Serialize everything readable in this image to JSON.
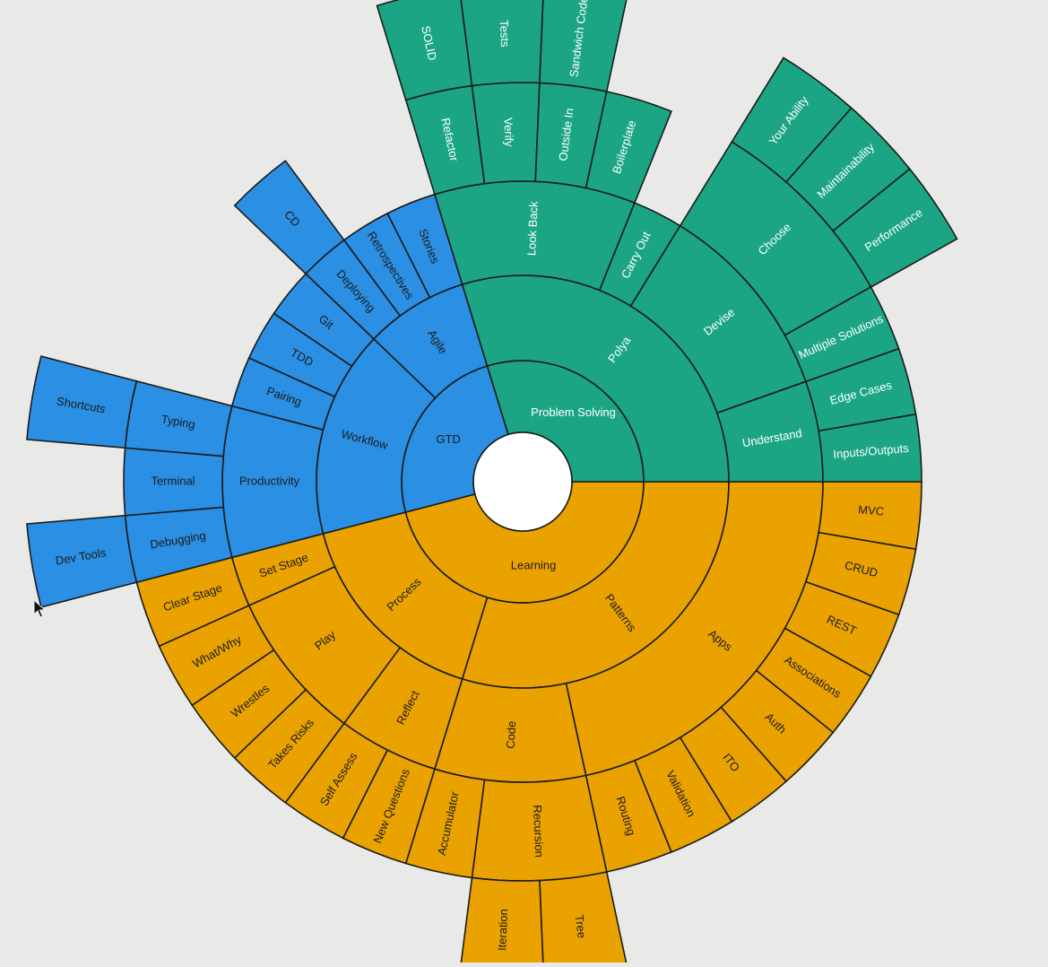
{
  "colors": {
    "Learning": "#e9a200",
    "Problem Solving": "#1ba584",
    "GTD": "#2b8fe3",
    "stroke": "#1a1a1a",
    "text_dark": "#1c1c1c",
    "text_light": "#ffffff",
    "center": "#ffffff",
    "background": "#e9e9e7"
  },
  "chart_data": {
    "type": "sunburst",
    "center": "",
    "nodes": [
      {
        "name": "Learning",
        "children": [
          {
            "name": "Patterns",
            "children": [
              {
                "name": "Apps",
                "children": [
                  {
                    "name": "MVC"
                  },
                  {
                    "name": "CRUD"
                  },
                  {
                    "name": "REST"
                  },
                  {
                    "name": "Associations"
                  },
                  {
                    "name": "Auth"
                  },
                  {
                    "name": "ITO"
                  },
                  {
                    "name": "Validation"
                  },
                  {
                    "name": "Routing"
                  }
                ]
              },
              {
                "name": "Code",
                "children": [
                  {
                    "name": "Recursion",
                    "children": [
                      {
                        "name": "Tree"
                      },
                      {
                        "name": "Iteration"
                      }
                    ]
                  },
                  {
                    "name": "Accumulator"
                  }
                ]
              }
            ]
          },
          {
            "name": "Process",
            "children": [
              {
                "name": "Reflect",
                "children": [
                  {
                    "name": "New Questions"
                  },
                  {
                    "name": "Self Assess"
                  }
                ]
              },
              {
                "name": "Play",
                "children": [
                  {
                    "name": "Takes Risks"
                  },
                  {
                    "name": "Wrestles"
                  },
                  {
                    "name": "What/Why"
                  }
                ]
              },
              {
                "name": "Set Stage",
                "children": [
                  {
                    "name": "Clear Stage"
                  }
                ]
              }
            ]
          }
        ]
      },
      {
        "name": "GTD",
        "children": [
          {
            "name": "Workflow",
            "children": [
              {
                "name": "Productivity",
                "children": [
                  {
                    "name": "Debugging",
                    "children": [
                      {
                        "name": "Dev Tools"
                      }
                    ]
                  },
                  {
                    "name": "Terminal"
                  },
                  {
                    "name": "Typing",
                    "children": [
                      {
                        "name": "Shortcuts"
                      }
                    ]
                  }
                ]
              },
              {
                "name": "Pairing"
              },
              {
                "name": "TDD"
              },
              {
                "name": "Git"
              }
            ]
          },
          {
            "name": "Agile",
            "children": [
              {
                "name": "Deploying",
                "children": [
                  {
                    "name": "CD"
                  }
                ]
              },
              {
                "name": "Retrospectives"
              },
              {
                "name": "Stories"
              }
            ]
          }
        ]
      },
      {
        "name": "Problem Solving",
        "children": [
          {
            "name": "Polya",
            "children": [
              {
                "name": "Look Back",
                "children": [
                  {
                    "name": "Refactor",
                    "children": [
                      {
                        "name": "SOLID"
                      }
                    ]
                  },
                  {
                    "name": "Verify",
                    "children": [
                      {
                        "name": "Tests"
                      }
                    ]
                  },
                  {
                    "name": "Outside In",
                    "children": [
                      {
                        "name": "Sandwich Code"
                      }
                    ]
                  },
                  {
                    "name": "Boilerplate"
                  }
                ]
              },
              {
                "name": "Carry Out"
              },
              {
                "name": "Devise",
                "children": [
                  {
                    "name": "Choose",
                    "children": [
                      {
                        "name": "Your Ability"
                      },
                      {
                        "name": "Maintainability"
                      },
                      {
                        "name": "Performance"
                      }
                    ]
                  },
                  {
                    "name": "Multiple Solutions"
                  }
                ]
              },
              {
                "name": "Understand",
                "children": [
                  {
                    "name": "Edge Cases"
                  },
                  {
                    "name": "Inputs/Outputs"
                  }
                ]
              }
            ]
          }
        ]
      }
    ]
  }
}
